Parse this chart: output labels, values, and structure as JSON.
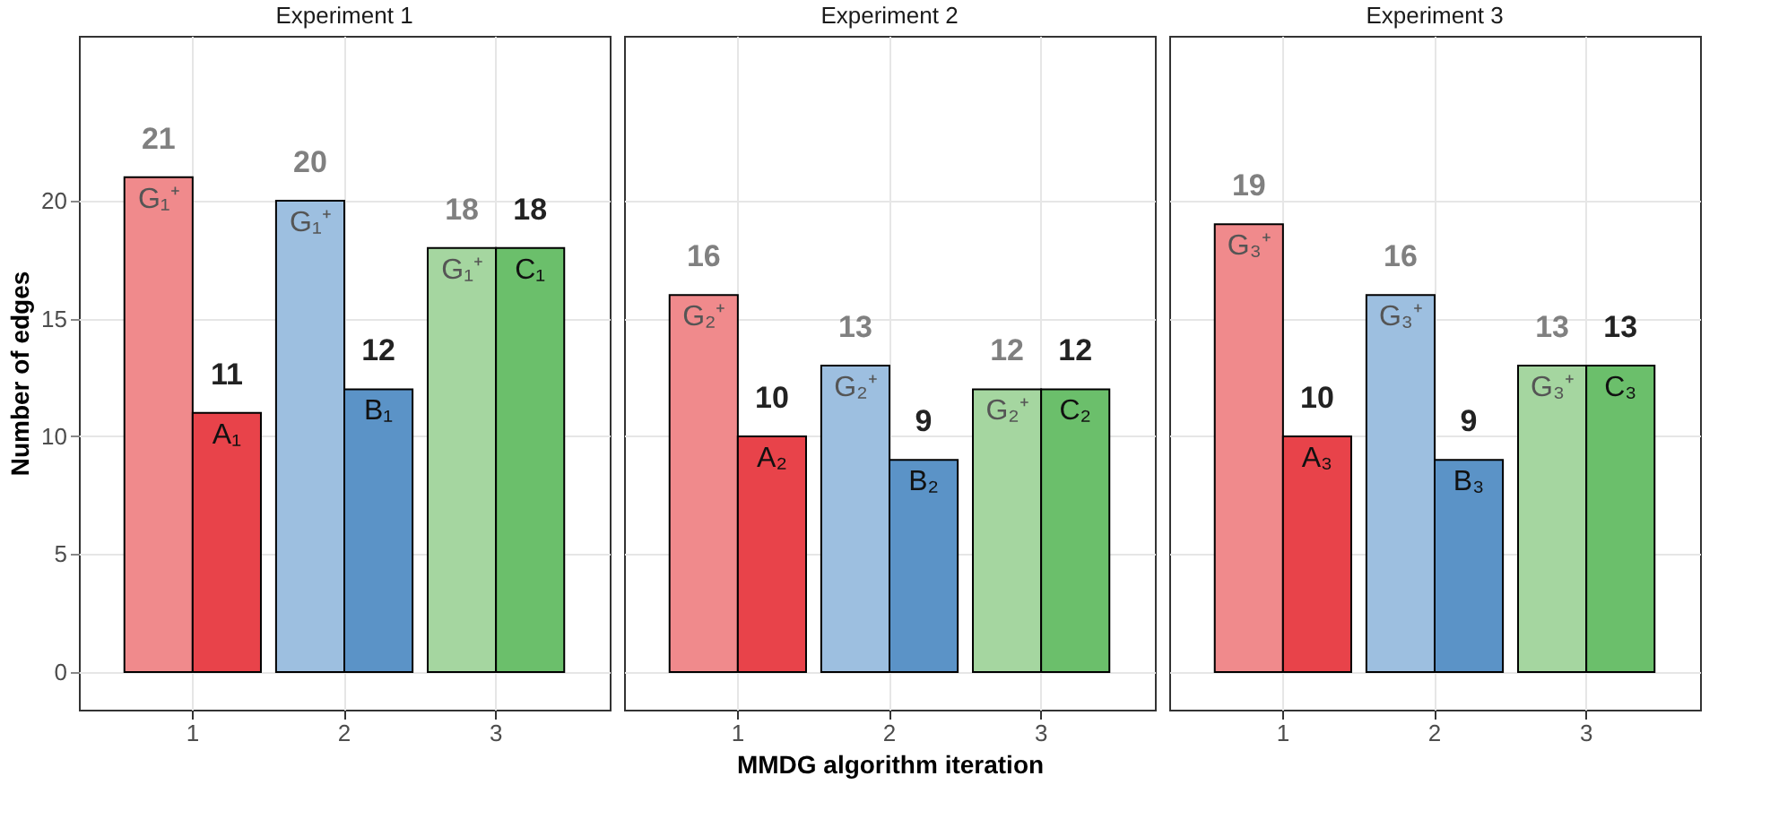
{
  "chart_data": [
    {
      "type": "bar",
      "title": "Experiment 1",
      "ylabel": "Number of edges",
      "categories": [
        "1",
        "2",
        "3"
      ],
      "series": [
        {
          "colors": [
            "#f08a8c",
            "#9dbfe0",
            "#a5d6a0"
          ],
          "values": [
            21,
            20,
            18
          ]
        },
        {
          "colors": [
            "#e8434a",
            "#5b93c7",
            "#6bbf6b"
          ],
          "values": [
            11,
            12,
            18
          ]
        }
      ],
      "data_labels": true,
      "ylim": [
        -1.6,
        27
      ],
      "yticks": [
        0,
        5,
        10,
        15,
        20
      ],
      "grid": true,
      "annotations": [
        {
          "text": "G₁⁺",
          "x": "1",
          "y": 21
        },
        {
          "text": "A₁",
          "x": "1",
          "y": 11
        },
        {
          "text": "G₁⁺",
          "x": "2",
          "y": 20
        },
        {
          "text": "B₁",
          "x": "2",
          "y": 12
        },
        {
          "text": "G₁⁺",
          "x": "3",
          "y": 18
        },
        {
          "text": "C₁",
          "x": "3",
          "y": 18
        }
      ]
    },
    {
      "type": "bar",
      "title": "Experiment 2",
      "xlabel": "MMDG algorithm iteration",
      "categories": [
        "1",
        "2",
        "3"
      ],
      "series": [
        {
          "colors": [
            "#f08a8c",
            "#9dbfe0",
            "#a5d6a0"
          ],
          "values": [
            16,
            13,
            12
          ]
        },
        {
          "colors": [
            "#e8434a",
            "#5b93c7",
            "#6bbf6b"
          ],
          "values": [
            10,
            9,
            12
          ]
        }
      ],
      "data_labels": true,
      "ylim": [
        -1.6,
        27
      ],
      "yticks": [
        0,
        5,
        10,
        15,
        20
      ],
      "grid": true,
      "tick_labels": "x",
      "annotations": [
        {
          "text": "G₂⁺",
          "x": "1",
          "y": 16
        },
        {
          "text": "A₂",
          "x": "1",
          "y": 10
        },
        {
          "text": "G₂⁺",
          "x": "2",
          "y": 13
        },
        {
          "text": "B₂",
          "x": "2",
          "y": 9
        },
        {
          "text": "G₂⁺",
          "x": "3",
          "y": 12
        },
        {
          "text": "C₂",
          "x": "3",
          "y": 12
        }
      ]
    },
    {
      "type": "bar",
      "title": "Experiment 3",
      "categories": [
        "1",
        "2",
        "3"
      ],
      "series": [
        {
          "colors": [
            "#f08a8c",
            "#9dbfe0",
            "#a5d6a0"
          ],
          "values": [
            19,
            16,
            13
          ]
        },
        {
          "colors": [
            "#e8434a",
            "#5b93c7",
            "#6bbf6b"
          ],
          "values": [
            10,
            9,
            13
          ]
        }
      ],
      "data_labels": true,
      "ylim": [
        -1.6,
        27
      ],
      "yticks": [
        0,
        5,
        10,
        15,
        20
      ],
      "grid": true,
      "tick_labels": "x",
      "annotations": [
        {
          "text": "G₃⁺",
          "x": "1",
          "y": 19
        },
        {
          "text": "A₃",
          "x": "1",
          "y": 10
        },
        {
          "text": "G₃⁺",
          "x": "2",
          "y": 16
        },
        {
          "text": "B₃",
          "x": "2",
          "y": 9
        },
        {
          "text": "G₃⁺",
          "x": "3",
          "y": 13
        },
        {
          "text": "C₃",
          "x": "3",
          "y": 13
        }
      ]
    }
  ]
}
